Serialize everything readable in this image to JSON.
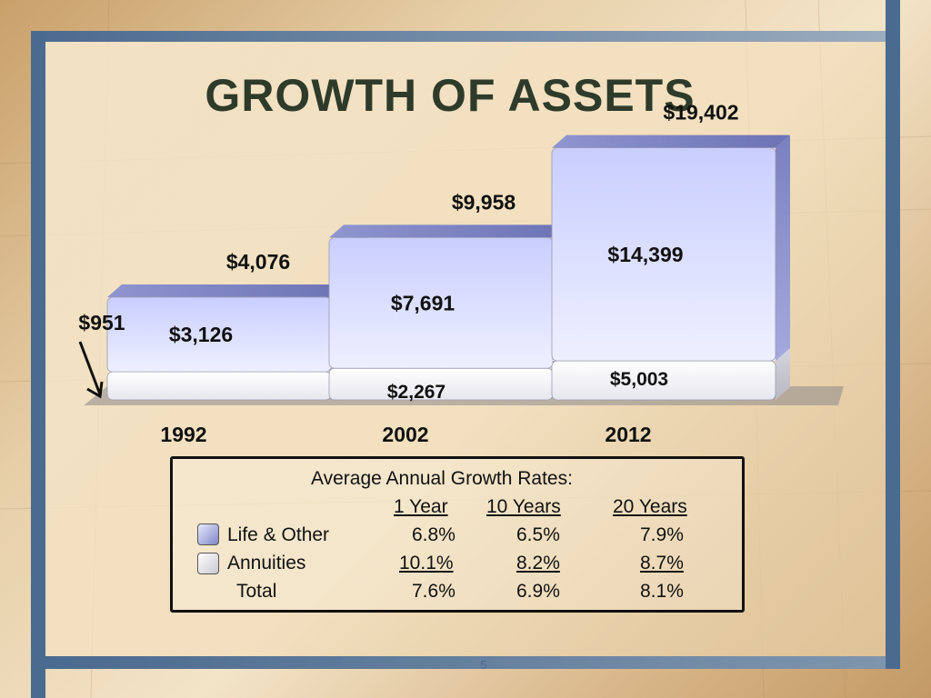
{
  "slide": {
    "title": "GROWTH OF ASSETS",
    "page_number": "5"
  },
  "chart_data": {
    "type": "bar",
    "stacked": true,
    "categories": [
      "1992",
      "2002",
      "2012"
    ],
    "series": [
      {
        "name": "Annuities",
        "values": [
          951,
          2267,
          5003
        ],
        "labels": [
          "$951",
          "$2,267",
          "$5,003"
        ],
        "color": "#f4f4f8"
      },
      {
        "name": "Life & Other",
        "values": [
          3126,
          7691,
          14399
        ],
        "labels": [
          "$3,126",
          "$7,691",
          "$14,399"
        ],
        "color": "#9aa0d8"
      }
    ],
    "totals": [
      4076,
      9958,
      19402
    ],
    "total_labels": [
      "$4,076",
      "$9,958",
      "$19,402"
    ],
    "title": "",
    "xlabel": "",
    "ylabel": "",
    "ylim": [
      0,
      20000
    ]
  },
  "growth_table": {
    "heading": "Average Annual Growth Rates:",
    "columns": [
      "1 Year",
      "10 Years",
      "20 Years"
    ],
    "rows": [
      {
        "label": "Life & Other",
        "values": [
          "6.8%",
          "6.5%",
          "7.9%"
        ],
        "underline": false
      },
      {
        "label": "Annuities",
        "values": [
          "10.1%",
          "8.2%",
          "8.7%"
        ],
        "underline": true
      },
      {
        "label": "Total",
        "values": [
          "7.6%",
          "6.9%",
          "8.1%"
        ],
        "underline": false
      }
    ]
  }
}
